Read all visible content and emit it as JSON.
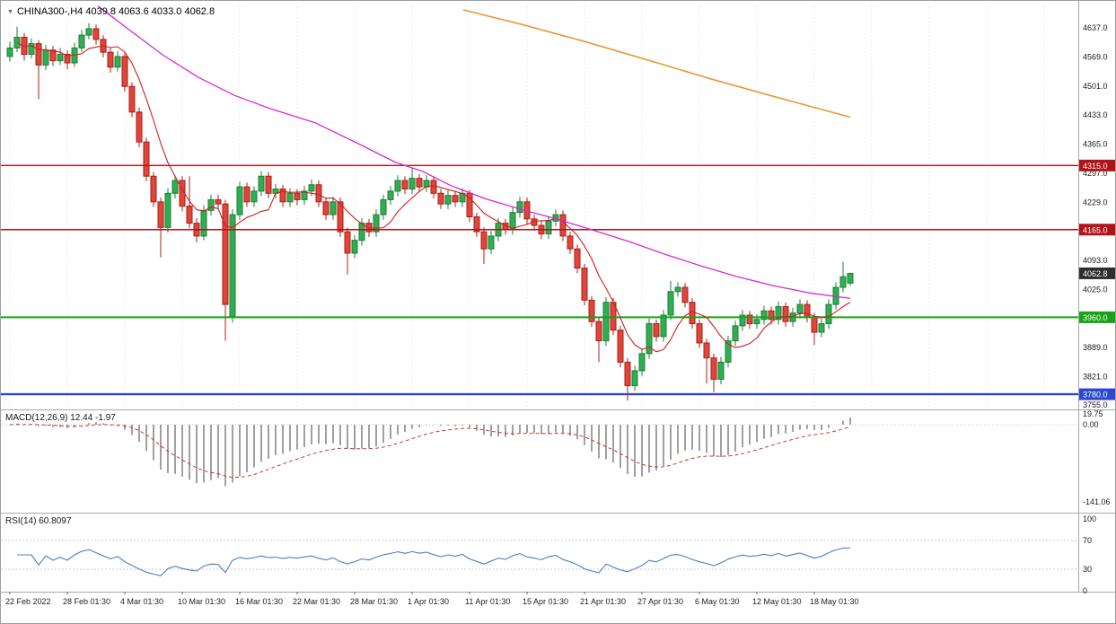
{
  "chart": {
    "header": {
      "collapse_icon": "▼",
      "title": "CHINA300-,H4 4039.8 4063.6 4033.0 4062.8"
    },
    "colors": {
      "bull": "#2fae52",
      "bull_border": "#1d7d37",
      "bear": "#e0443a",
      "bear_border": "#a81f16",
      "grid": "#ececec",
      "axis_text": "#1a1a1a",
      "panel_border": "#a8a8a8",
      "badge_text": "#ffffff"
    },
    "chart_data": {
      "type": "candlestick",
      "symbol": "CHINA300-",
      "timeframe": "H4",
      "ohlc": {
        "open": 4039.8,
        "high": 4063.6,
        "low": 4033.0,
        "close": 4062.8
      },
      "bars_per_label": 8,
      "candles": [
        [
          4570,
          4605,
          4558,
          4590
        ],
        [
          4590,
          4640,
          4580,
          4615
        ],
        [
          4615,
          4625,
          4560,
          4575
        ],
        [
          4575,
          4612,
          4565,
          4600
        ],
        [
          4600,
          4608,
          4470,
          4550
        ],
        [
          4550,
          4597,
          4538,
          4585
        ],
        [
          4585,
          4595,
          4548,
          4560
        ],
        [
          4560,
          4590,
          4550,
          4575
        ],
        [
          4575,
          4585,
          4540,
          4555
        ],
        [
          4555,
          4602,
          4545,
          4590
        ],
        [
          4590,
          4632,
          4580,
          4620
        ],
        [
          4620,
          4648,
          4610,
          4635
        ],
        [
          4635,
          4645,
          4598,
          4610
        ],
        [
          4610,
          4620,
          4568,
          4580
        ],
        [
          4580,
          4590,
          4532,
          4545
        ],
        [
          4545,
          4582,
          4535,
          4570
        ],
        [
          4570,
          4578,
          4488,
          4500
        ],
        [
          4500,
          4510,
          4428,
          4440
        ],
        [
          4440,
          4450,
          4358,
          4370
        ],
        [
          4370,
          4380,
          4278,
          4290
        ],
        [
          4290,
          4300,
          4218,
          4230
        ],
        [
          4230,
          4240,
          4100,
          4170
        ],
        [
          4170,
          4262,
          4158,
          4250
        ],
        [
          4250,
          4292,
          4238,
          4280
        ],
        [
          4280,
          4290,
          4208,
          4220
        ],
        [
          4220,
          4290,
          4168,
          4180
        ],
        [
          4180,
          4192,
          4135,
          4150
        ],
        [
          4150,
          4222,
          4140,
          4210
        ],
        [
          4210,
          4247,
          4198,
          4235
        ],
        [
          4235,
          4247,
          4212,
          4225
        ],
        [
          4225,
          4235,
          3905,
          3990
        ],
        [
          3960,
          4212,
          3948,
          4200
        ],
        [
          4200,
          4277,
          4188,
          4265
        ],
        [
          4265,
          4275,
          4218,
          4230
        ],
        [
          4230,
          4267,
          4218,
          4255
        ],
        [
          4255,
          4302,
          4243,
          4290
        ],
        [
          4290,
          4300,
          4238,
          4250
        ],
        [
          4250,
          4272,
          4238,
          4260
        ],
        [
          4260,
          4270,
          4218,
          4230
        ],
        [
          4230,
          4262,
          4218,
          4250
        ],
        [
          4250,
          4260,
          4222,
          4235
        ],
        [
          4235,
          4267,
          4223,
          4255
        ],
        [
          4255,
          4282,
          4243,
          4270
        ],
        [
          4270,
          4280,
          4218,
          4230
        ],
        [
          4230,
          4240,
          4188,
          4200
        ],
        [
          4200,
          4242,
          4188,
          4230
        ],
        [
          4230,
          4240,
          4148,
          4160
        ],
        [
          4160,
          4170,
          4060,
          4110
        ],
        [
          4110,
          4152,
          4098,
          4140
        ],
        [
          4140,
          4192,
          4128,
          4180
        ],
        [
          4180,
          4190,
          4148,
          4160
        ],
        [
          4160,
          4212,
          4148,
          4200
        ],
        [
          4200,
          4247,
          4188,
          4235
        ],
        [
          4235,
          4267,
          4223,
          4255
        ],
        [
          4255,
          4292,
          4243,
          4280
        ],
        [
          4280,
          4290,
          4248,
          4260
        ],
        [
          4260,
          4310,
          4248,
          4285
        ],
        [
          4285,
          4295,
          4253,
          4265
        ],
        [
          4265,
          4292,
          4253,
          4280
        ],
        [
          4280,
          4290,
          4238,
          4250
        ],
        [
          4250,
          4260,
          4213,
          4225
        ],
        [
          4225,
          4257,
          4213,
          4245
        ],
        [
          4245,
          4255,
          4218,
          4230
        ],
        [
          4230,
          4262,
          4218,
          4250
        ],
        [
          4250,
          4258,
          4183,
          4195
        ],
        [
          4195,
          4205,
          4148,
          4160
        ],
        [
          4160,
          4170,
          4085,
          4120
        ],
        [
          4120,
          4162,
          4108,
          4150
        ],
        [
          4150,
          4192,
          4138,
          4180
        ],
        [
          4180,
          4190,
          4153,
          4165
        ],
        [
          4165,
          4217,
          4153,
          4205
        ],
        [
          4205,
          4242,
          4193,
          4230
        ],
        [
          4230,
          4240,
          4178,
          4190
        ],
        [
          4190,
          4200,
          4163,
          4175
        ],
        [
          4175,
          4185,
          4143,
          4155
        ],
        [
          4155,
          4197,
          4143,
          4185
        ],
        [
          4185,
          4212,
          4173,
          4200
        ],
        [
          4200,
          4210,
          4138,
          4150
        ],
        [
          4150,
          4160,
          4108,
          4120
        ],
        [
          4120,
          4130,
          4063,
          4075
        ],
        [
          4075,
          4085,
          3988,
          4000
        ],
        [
          4000,
          4010,
          3938,
          3950
        ],
        [
          3950,
          3960,
          3855,
          3905
        ],
        [
          3905,
          4007,
          3893,
          3995
        ],
        [
          3995,
          4005,
          3918,
          3930
        ],
        [
          3930,
          3940,
          3843,
          3855
        ],
        [
          3855,
          3865,
          3765,
          3800
        ],
        [
          3800,
          3847,
          3788,
          3835
        ],
        [
          3835,
          3887,
          3823,
          3875
        ],
        [
          3875,
          3957,
          3863,
          3945
        ],
        [
          3945,
          3955,
          3903,
          3915
        ],
        [
          3915,
          3977,
          3903,
          3965
        ],
        [
          3965,
          4045,
          3953,
          4020
        ],
        [
          4020,
          4042,
          4008,
          4030
        ],
        [
          4030,
          4040,
          3983,
          3995
        ],
        [
          3995,
          4005,
          3933,
          3945
        ],
        [
          3945,
          3955,
          3888,
          3900
        ],
        [
          3900,
          3910,
          3805,
          3865
        ],
        [
          3865,
          3875,
          3785,
          3815
        ],
        [
          3815,
          3867,
          3803,
          3855
        ],
        [
          3855,
          3917,
          3843,
          3905
        ],
        [
          3905,
          3952,
          3893,
          3940
        ],
        [
          3940,
          3977,
          3928,
          3965
        ],
        [
          3965,
          3975,
          3933,
          3945
        ],
        [
          3945,
          3967,
          3933,
          3955
        ],
        [
          3955,
          3987,
          3943,
          3975
        ],
        [
          3975,
          3985,
          3943,
          3955
        ],
        [
          3955,
          3997,
          3943,
          3985
        ],
        [
          3985,
          3995,
          3938,
          3950
        ],
        [
          3950,
          3982,
          3938,
          3970
        ],
        [
          3970,
          4002,
          3958,
          3990
        ],
        [
          3990,
          4000,
          3948,
          3960
        ],
        [
          3960,
          3970,
          3895,
          3925
        ],
        [
          3925,
          3957,
          3913,
          3945
        ],
        [
          3945,
          4002,
          3933,
          3990
        ],
        [
          3990,
          4042,
          3978,
          4030
        ],
        [
          4030,
          4090,
          4018,
          4055
        ],
        [
          4039.8,
          4063.6,
          4033.0,
          4062.8
        ]
      ],
      "x_labels": [
        "22 Feb 2022",
        "28 Feb 01:30",
        "4 Mar 01:30",
        "10 Mar 01:30",
        "16 Mar 01:30",
        "22 Mar 01:30",
        "28 Mar 01:30",
        "1 Apr 01:30",
        "11 Apr 01:30",
        "15 Apr 01:30",
        "21 Apr 01:30",
        "27 Apr 01:30",
        "6 May 01:30",
        "12 May 01:30",
        "18 May 01:30"
      ],
      "y_ticks": [
        4637.0,
        4569.0,
        4501.0,
        4433.0,
        4365.0,
        4297.0,
        4229.0,
        4093.0,
        4025.0,
        3889.0,
        3821.0,
        3755.0
      ],
      "hlines": [
        {
          "price": 4315.0,
          "label": "4315.0",
          "color": "#b31217",
          "width": 1.4,
          "name": "resistance-line-4315"
        },
        {
          "price": 4165.0,
          "label": "4165.0",
          "color": "#b31217",
          "width": 1.4,
          "name": "resistance-line-4165"
        },
        {
          "price": 3960.0,
          "label": "3960.0",
          "color": "#17a317",
          "width": 2,
          "name": "support-line-3960"
        },
        {
          "price": 3780.0,
          "label": "3780.0",
          "color": "#2c48cf",
          "width": 2.4,
          "name": "support-line-3780"
        }
      ],
      "current_price": {
        "value": 4062.8,
        "label": "4062.8",
        "badge_color": "#2e2e2e"
      },
      "overlays": {
        "ma_red": {
          "type": "sma",
          "period": 7,
          "color": "#cf1f1f"
        },
        "ma_magenta": {
          "color": "#d32bd3",
          "points": [
            [
              108,
              4688
            ],
            [
              140,
              4637
            ],
            [
              180,
              4574
            ],
            [
              220,
              4521
            ],
            [
              260,
              4479
            ],
            [
              300,
              4448
            ],
            [
              350,
              4415
            ],
            [
              400,
              4364
            ],
            [
              440,
              4322
            ],
            [
              470,
              4301
            ],
            [
              500,
              4269
            ],
            [
              540,
              4237
            ],
            [
              580,
              4212
            ],
            [
              620,
              4189
            ],
            [
              650,
              4170
            ],
            [
              700,
              4137
            ],
            [
              740,
              4107
            ],
            [
              780,
              4080
            ],
            [
              820,
              4055
            ],
            [
              860,
              4034
            ],
            [
              900,
              4017
            ],
            [
              946,
              4004
            ]
          ]
        },
        "ma_orange": {
          "color": "#e59b37",
          "points": [
            [
              515,
              4679
            ],
            [
              580,
              4645
            ],
            [
              650,
              4605
            ],
            [
              720,
              4562
            ],
            [
              790,
              4518
            ],
            [
              860,
              4477
            ],
            [
              946,
              4428
            ]
          ]
        }
      },
      "indicators": {
        "macd": {
          "label": "MACD(12,26,9) 12.44 -1.97",
          "fast": 12,
          "slow": 26,
          "signal": 9,
          "value": 12.44,
          "signal_value": -1.97,
          "axis_labels": [
            {
              "v": 19.75,
              "text": "19.75"
            },
            {
              "v": 0,
              "text": "0.00"
            },
            {
              "v": -141.06,
              "text": "-141.06"
            }
          ],
          "hist_color": "#a0a0a0",
          "signal_color": "#c43c30"
        },
        "rsi": {
          "label": "RSI(14) 60.8097",
          "period": 14,
          "value": 60.8097,
          "axis_labels": [
            {
              "v": 100,
              "text": "100"
            },
            {
              "v": 70,
              "text": "70"
            },
            {
              "v": 30,
              "text": "30"
            },
            {
              "v": 0,
              "text": "0"
            }
          ],
          "levels": [
            70,
            30
          ],
          "line_color": "#4c7fc0"
        }
      }
    }
  }
}
